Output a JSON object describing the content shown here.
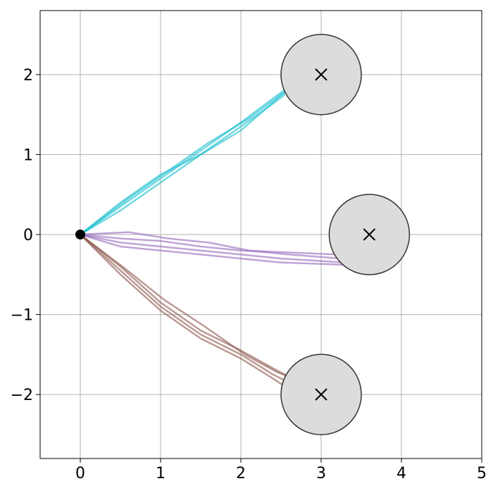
{
  "chart_data": {
    "type": "trajectory",
    "xlim": [
      -0.5,
      5
    ],
    "ylim": [
      -2.8,
      2.8
    ],
    "xticks": [
      0,
      1,
      2,
      3,
      4,
      5
    ],
    "yticks": [
      {
        "value": -2,
        "label": "−2"
      },
      {
        "value": -1,
        "label": "−1"
      },
      0,
      1,
      2
    ],
    "grid": true,
    "start": {
      "x": 0,
      "y": 0,
      "color": "#000000"
    },
    "goals": {
      "x": [
        3,
        3.6,
        3
      ],
      "y": [
        2,
        0,
        -2
      ],
      "radius": 0.5,
      "color": "#dcdcdc"
    },
    "series": [
      {
        "color": "#17becf",
        "x": [
          0,
          0.5,
          1,
          1.5,
          2,
          2.4,
          2.6
        ],
        "values": [
          0,
          0.35,
          0.7,
          1.05,
          1.4,
          1.7,
          1.85
        ]
      },
      {
        "color": "#17becf",
        "x": [
          0,
          0.5,
          1,
          1.5,
          2,
          2.35,
          2.55
        ],
        "values": [
          0,
          0.4,
          0.75,
          1.0,
          1.35,
          1.6,
          1.75
        ]
      },
      {
        "color": "#17becf",
        "x": [
          0,
          0.5,
          1,
          1.5,
          2,
          2.4,
          2.65
        ],
        "values": [
          0,
          0.3,
          0.65,
          1.0,
          1.3,
          1.65,
          1.88
        ]
      },
      {
        "color": "#17becf",
        "x": [
          0,
          0.6,
          1.1,
          1.6,
          2.1,
          2.5,
          2.6
        ],
        "values": [
          0,
          0.45,
          0.8,
          1.15,
          1.45,
          1.75,
          1.8
        ]
      },
      {
        "color": "#9467bd",
        "x": [
          0,
          0.5,
          1,
          1.5,
          2,
          2.5,
          3.3
        ],
        "values": [
          0,
          -0.1,
          -0.15,
          -0.2,
          -0.25,
          -0.3,
          -0.35
        ]
      },
      {
        "color": "#9467bd",
        "x": [
          0,
          0.5,
          1,
          1.5,
          2,
          2.5,
          3.2
        ],
        "values": [
          0,
          -0.05,
          -0.08,
          -0.15,
          -0.2,
          -0.22,
          -0.25
        ]
      },
      {
        "color": "#9467bd",
        "x": [
          0,
          0.5,
          1,
          1.5,
          2,
          2.5,
          3.35
        ],
        "values": [
          0,
          -0.15,
          -0.2,
          -0.25,
          -0.3,
          -0.35,
          -0.38
        ]
      },
      {
        "color": "#9467bd",
        "x": [
          0,
          0.6,
          1.1,
          1.6,
          2.1,
          2.6,
          3.25
        ],
        "values": [
          0,
          0.03,
          -0.05,
          -0.1,
          -0.2,
          -0.25,
          -0.3
        ]
      },
      {
        "color": "#8c564b",
        "x": [
          0,
          0.5,
          1,
          1.5,
          2,
          2.4,
          2.6
        ],
        "values": [
          0,
          -0.45,
          -0.9,
          -1.25,
          -1.5,
          -1.75,
          -1.85
        ]
      },
      {
        "color": "#8c564b",
        "x": [
          0,
          0.5,
          1,
          1.5,
          2,
          2.45,
          2.65
        ],
        "values": [
          0,
          -0.4,
          -0.85,
          -1.2,
          -1.45,
          -1.7,
          -1.8
        ]
      },
      {
        "color": "#8c564b",
        "x": [
          0,
          0.5,
          1,
          1.5,
          2,
          2.4,
          2.55
        ],
        "values": [
          0,
          -0.5,
          -0.95,
          -1.3,
          -1.55,
          -1.8,
          -1.9
        ]
      },
      {
        "color": "#8c564b",
        "x": [
          0,
          0.55,
          1.05,
          1.55,
          2.05,
          2.45,
          2.6
        ],
        "values": [
          0,
          -0.42,
          -0.82,
          -1.15,
          -1.5,
          -1.72,
          -1.78
        ]
      }
    ]
  }
}
